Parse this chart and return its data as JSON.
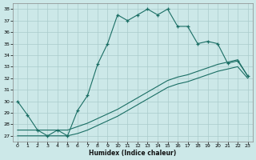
{
  "xlabel": "Humidex (Indice chaleur)",
  "bg_color": "#cce8e8",
  "line_color": "#1a6e64",
  "grid_color": "#aacccc",
  "xlim": [
    -0.5,
    23.5
  ],
  "ylim": [
    26.5,
    38.5
  ],
  "xticks": [
    0,
    1,
    2,
    3,
    4,
    5,
    6,
    7,
    8,
    9,
    10,
    11,
    12,
    13,
    14,
    15,
    16,
    17,
    18,
    19,
    20,
    21,
    22,
    23
  ],
  "yticks": [
    27,
    28,
    29,
    30,
    31,
    32,
    33,
    34,
    35,
    36,
    37,
    38
  ],
  "line1_x": [
    0,
    1,
    2,
    3,
    4,
    5,
    6,
    7,
    8,
    9,
    10,
    11,
    12,
    13,
    14,
    15,
    16,
    17,
    18,
    19,
    20,
    21,
    22,
    23
  ],
  "line1_y": [
    30.0,
    28.8,
    27.5,
    27.0,
    27.5,
    27.0,
    29.2,
    30.5,
    33.2,
    35.0,
    37.5,
    37.0,
    37.5,
    38.0,
    37.5,
    38.0,
    36.5,
    36.5,
    35.0,
    35.2,
    35.0,
    33.3,
    33.5,
    32.2
  ],
  "line2_x": [
    0,
    1,
    2,
    3,
    4,
    5,
    6,
    7,
    8,
    9,
    10,
    11,
    12,
    13,
    14,
    15,
    16,
    17,
    18,
    19,
    20,
    21,
    22,
    23
  ],
  "line2_y": [
    27.5,
    27.5,
    27.5,
    27.5,
    27.5,
    27.5,
    27.8,
    28.1,
    28.5,
    28.9,
    29.3,
    29.8,
    30.3,
    30.8,
    31.3,
    31.8,
    32.1,
    32.3,
    32.6,
    32.9,
    33.2,
    33.4,
    33.6,
    32.2
  ],
  "line3_x": [
    0,
    1,
    2,
    3,
    4,
    5,
    6,
    7,
    8,
    9,
    10,
    11,
    12,
    13,
    14,
    15,
    16,
    17,
    18,
    19,
    20,
    21,
    22,
    23
  ],
  "line3_y": [
    27.0,
    27.0,
    27.0,
    27.0,
    27.0,
    27.0,
    27.2,
    27.5,
    27.9,
    28.3,
    28.7,
    29.2,
    29.7,
    30.2,
    30.7,
    31.2,
    31.5,
    31.7,
    32.0,
    32.3,
    32.6,
    32.8,
    33.0,
    32.0
  ]
}
